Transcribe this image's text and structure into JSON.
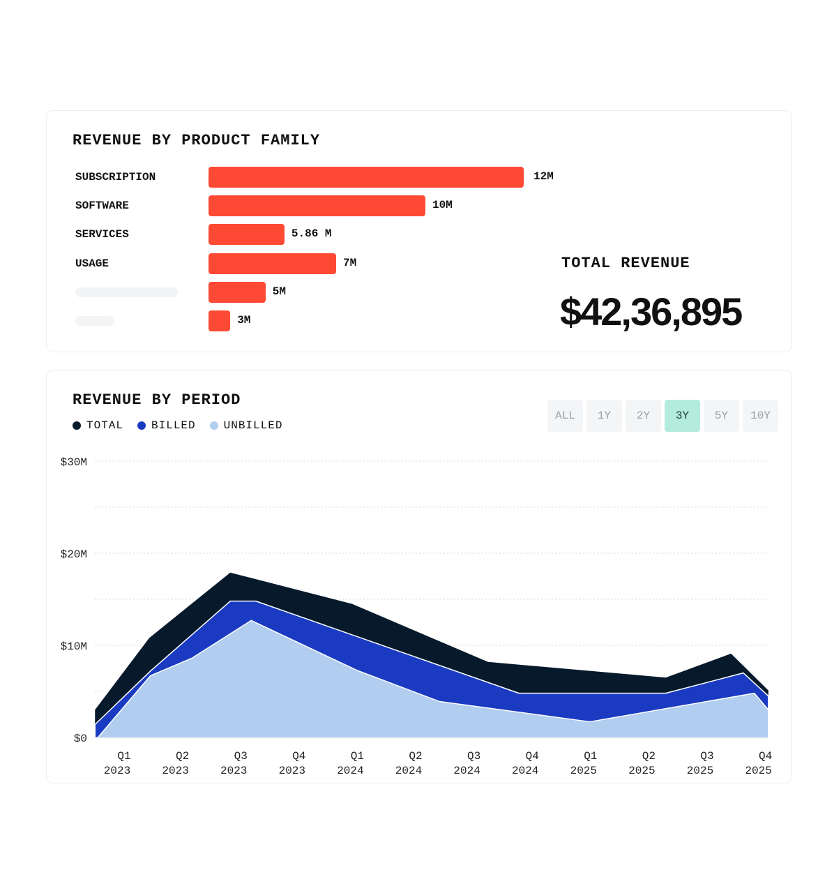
{
  "product_family": {
    "title": "REVENUE BY PRODUCT FAMILY",
    "rows": [
      {
        "label": "SUBSCRIPTION",
        "value_label": "12M",
        "fill": 1.0
      },
      {
        "label": "SOFTWARE",
        "value_label": "10M",
        "fill": 0.688
      },
      {
        "label": "SERVICES",
        "value_label": "5.86 M",
        "fill": 0.241
      },
      {
        "label": "USAGE",
        "value_label": "7M",
        "fill": 0.405
      },
      {
        "label": null,
        "value_label": "5M",
        "fill": 0.181
      },
      {
        "label": null,
        "value_label": "3M",
        "fill": 0.069
      }
    ],
    "total_label": "TOTAL REVENUE",
    "total_value": "$42,36,895",
    "bar_color": "#fe4a34"
  },
  "period": {
    "title": "REVENUE BY PERIOD",
    "legend": [
      {
        "label": "TOTAL",
        "color": "#071a2c"
      },
      {
        "label": "BILLED",
        "color": "#1a3bc1"
      },
      {
        "label": "UNBILLED",
        "color": "#b1cdef"
      }
    ],
    "ranges": [
      "ALL",
      "1Y",
      "2Y",
      "3Y",
      "5Y",
      "10Y"
    ],
    "active_range": "3Y"
  },
  "chart_data": {
    "type": "area",
    "title": "REVENUE BY PERIOD",
    "x_unit": "quarter index (0 = Q1 2023)",
    "categories": [
      "Q1 2023",
      "Q2 2023",
      "Q3 2023",
      "Q4 2023",
      "Q1 2024",
      "Q2 2024",
      "Q3 2024",
      "Q4 2024",
      "Q1 2025",
      "Q2 2025",
      "Q3 2025",
      "Q4 2025"
    ],
    "xlim": [
      -0.38,
      11.17
    ],
    "ylim": [
      0,
      30
    ],
    "y_ticks": [
      {
        "v": 0,
        "label": "$0"
      },
      {
        "v": 10,
        "label": "$10M"
      },
      {
        "v": 20,
        "label": "$20M"
      },
      {
        "v": 30,
        "label": "$30M"
      }
    ],
    "grid_step": 5,
    "series": [
      {
        "name": "TOTAL",
        "color": "#071a2c",
        "points": [
          [
            -0.38,
            3.0
          ],
          [
            0.55,
            10.8
          ],
          [
            1.94,
            17.9
          ],
          [
            4.03,
            14.5
          ],
          [
            6.36,
            8.2
          ],
          [
            9.41,
            6.5
          ],
          [
            10.53,
            9.1
          ],
          [
            11.17,
            5.1
          ]
        ]
      },
      {
        "name": "BILLED",
        "color": "#1a3bc1",
        "points": [
          [
            -0.38,
            1.4
          ],
          [
            0.57,
            7.2
          ],
          [
            1.94,
            14.8
          ],
          [
            2.38,
            14.8
          ],
          [
            6.89,
            4.8
          ],
          [
            9.41,
            4.8
          ],
          [
            10.74,
            7.0
          ],
          [
            11.17,
            4.5
          ]
        ]
      },
      {
        "name": "UNBILLED",
        "color": "#b1cdef",
        "points": [
          [
            -0.33,
            0
          ],
          [
            0.57,
            6.7
          ],
          [
            1.28,
            8.6
          ],
          [
            2.3,
            12.7
          ],
          [
            4.11,
            7.3
          ],
          [
            5.53,
            3.9
          ],
          [
            8.11,
            1.7
          ],
          [
            10.93,
            4.8
          ],
          [
            11.17,
            3.0
          ]
        ]
      }
    ]
  }
}
